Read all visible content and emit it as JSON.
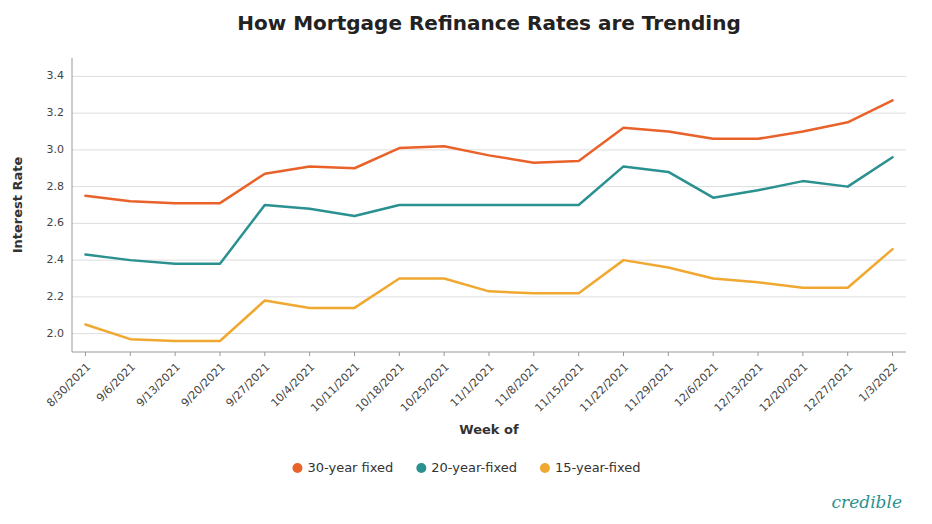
{
  "chart_data": {
    "type": "line",
    "title": "How Mortgage Refinance Rates are Trending",
    "x_label": "Week of",
    "y_label": "Interest Rate",
    "categories": [
      "8/30/2021",
      "9/6/2021",
      "9/13/2021",
      "9/20/2021",
      "9/27/2021",
      "10/4/2021",
      "10/11/2021",
      "10/18/2021",
      "10/25/2021",
      "11/1/2021",
      "11/8/2021",
      "11/15/2021",
      "11/22/2021",
      "11/29/2021",
      "12/6/2021",
      "12/13/2021",
      "12/20/2021",
      "12/27/2021",
      "1/3/2022"
    ],
    "series": [
      {
        "name": "30-year fixed",
        "color": "#E8622A",
        "values": [
          2.75,
          2.72,
          2.71,
          2.71,
          2.87,
          2.91,
          2.9,
          3.01,
          3.02,
          2.97,
          2.93,
          2.94,
          3.12,
          3.1,
          3.06,
          3.06,
          3.1,
          3.15,
          3.27
        ]
      },
      {
        "name": "20-year-fixed",
        "color": "#2A9090",
        "values": [
          2.43,
          2.4,
          2.38,
          2.38,
          2.7,
          2.68,
          2.64,
          2.7,
          2.7,
          2.7,
          2.7,
          2.7,
          2.91,
          2.88,
          2.74,
          2.78,
          2.83,
          2.8,
          2.96
        ]
      },
      {
        "name": "15-year-fixed",
        "color": "#F0A830",
        "values": [
          2.05,
          1.97,
          1.96,
          1.96,
          2.18,
          2.14,
          2.14,
          2.3,
          2.3,
          2.23,
          2.22,
          2.22,
          2.4,
          2.36,
          2.3,
          2.28,
          2.25,
          2.25,
          2.46
        ]
      }
    ],
    "ylim": [
      1.9,
      3.5
    ],
    "yticks": [
      {
        "value": 2,
        "label": "2.0"
      },
      2.2,
      2.4,
      2.6,
      2.8,
      {
        "value": 3,
        "label": "3.0"
      },
      3.2,
      3.4
    ],
    "grid": true,
    "legend": "bottom",
    "annotations": [
      {
        "text": "credible",
        "color": "#2A9090"
      }
    ]
  }
}
